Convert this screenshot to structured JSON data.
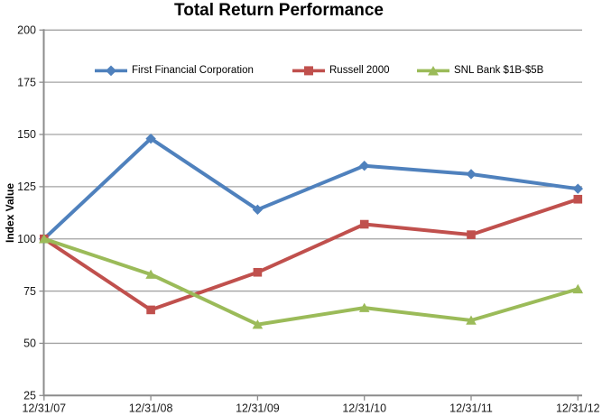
{
  "chart_data": {
    "type": "line",
    "title": "Total Return Performance",
    "ylabel": "Index Value",
    "xlabel": "",
    "categories": [
      "12/31/07",
      "12/31/08",
      "12/31/09",
      "12/31/10",
      "12/31/11",
      "12/31/12"
    ],
    "series": [
      {
        "name": "First Financial Corporation",
        "color": "#4F81BD",
        "marker": "diamond",
        "values": [
          100,
          148,
          114,
          135,
          131,
          124
        ]
      },
      {
        "name": "Russell 2000",
        "color": "#C0504D",
        "marker": "square",
        "values": [
          100,
          66,
          84,
          107,
          102,
          119
        ]
      },
      {
        "name": "SNL Bank $1B-$5B",
        "color": "#9BBB59",
        "marker": "triangle",
        "values": [
          100,
          83,
          59,
          67,
          61,
          76
        ]
      }
    ],
    "ylim": [
      25,
      200
    ],
    "yticks": [
      200,
      175,
      150,
      125,
      100,
      75,
      50,
      25
    ],
    "grid": "horizontal",
    "legend_position": "top-inside",
    "grid_color": "#A3A3A3",
    "axis_color": "#8C8C8C",
    "tick_label_color": "#1A1A1A"
  }
}
